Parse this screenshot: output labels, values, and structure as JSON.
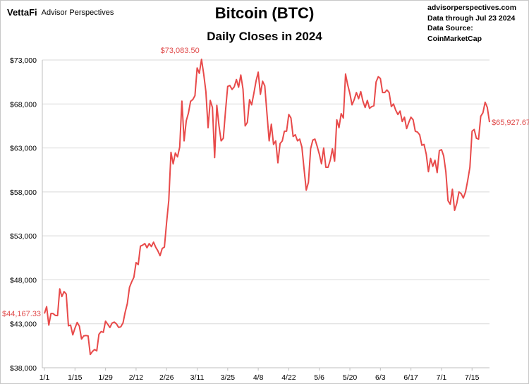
{
  "header": {
    "brand": "VettaFi",
    "brand_sub": "Advisor Perspectives",
    "source_lines": [
      "advisorperspectives.com",
      "Data through Jul 23 2024",
      "Data Source: CoinMarketCap"
    ]
  },
  "colors": {
    "line": "#e84a4a",
    "grid": "#d9d9d9",
    "accent": "#e03c31"
  },
  "chart_data": {
    "type": "line",
    "title": "Bitcoin (BTC)",
    "subtitle": "Daily Closes in 2024",
    "xlabel": "",
    "ylabel": "",
    "ylim": [
      38000,
      73000
    ],
    "yticks": [
      38000,
      43000,
      48000,
      53000,
      58000,
      63000,
      68000,
      73000
    ],
    "ytick_labels": [
      "$38,000",
      "$43,000",
      "$48,000",
      "$53,000",
      "$58,000",
      "$63,000",
      "$68,000",
      "$73,000"
    ],
    "xticks": [
      "1/1",
      "1/15",
      "1/29",
      "2/12",
      "2/26",
      "3/11",
      "3/25",
      "4/8",
      "4/22",
      "5/6",
      "5/20",
      "6/3",
      "6/17",
      "7/1",
      "7/15"
    ],
    "x_start": "2024-01-01",
    "x_end": "2024-07-23",
    "grid": true,
    "series": [
      {
        "name": "",
        "values": [
          44167.33,
          44950,
          42850,
          44180,
          44160,
          43950,
          43930,
          46970,
          46100,
          46660,
          46380,
          42780,
          42850,
          41740,
          42510,
          43150,
          42740,
          41270,
          41620,
          41670,
          41620,
          39510,
          39850,
          40080,
          39930,
          41810,
          42120,
          42030,
          43300,
          42950,
          42580,
          43080,
          43190,
          42990,
          42580,
          42660,
          43100,
          44300,
          45300,
          47150,
          47770,
          48290,
          49960,
          49740,
          51830,
          51940,
          52130,
          51650,
          52120,
          51780,
          52280,
          51700,
          51300,
          50750,
          51570,
          51730,
          54520,
          57050,
          62500,
          61180,
          62430,
          61990,
          63110,
          68330,
          63800,
          66100,
          66950,
          68300,
          68500,
          68950,
          72100,
          71480,
          73083.5,
          71400,
          69400,
          65300,
          68400,
          67600,
          61900,
          67850,
          65500,
          63800,
          64100,
          67200,
          70000,
          70100,
          69650,
          69950,
          70780,
          69900,
          71300,
          69700,
          65500,
          65900,
          68500,
          67900,
          69200,
          70600,
          71620,
          69100,
          70590,
          70050,
          66900,
          63800,
          65700,
          63400,
          63800,
          61300,
          63500,
          63800,
          64900,
          64900,
          66800,
          66400,
          64300,
          64500,
          63800,
          64000,
          63100,
          60600,
          58200,
          59100,
          62900,
          63900,
          64000,
          63200,
          62300,
          61200,
          63000,
          60800,
          60800,
          61600,
          62900,
          61500,
          66200,
          65300,
          66900,
          66400,
          71400,
          70200,
          69200,
          67900,
          68500,
          69300,
          68600,
          69400,
          68300,
          67600,
          68400,
          67500,
          67700,
          67800,
          70500,
          71100,
          70900,
          69300,
          69300,
          69600,
          69300,
          67700,
          68000,
          67300,
          66800,
          67200,
          66000,
          66500,
          65200,
          65900,
          66500,
          66200,
          64900,
          64800,
          64500,
          63300,
          63400,
          62300,
          60300,
          61800,
          60900,
          61600,
          60200,
          62700,
          62800,
          62100,
          60300,
          57000,
          56600,
          58300,
          55900,
          56700,
          58000,
          57800,
          57300,
          58000,
          59300,
          60800,
          64900,
          65100,
          64100,
          64000,
          66600,
          67000,
          68200,
          67600,
          65927.67
        ]
      }
    ],
    "annotations": [
      {
        "text": "$44,167.33",
        "kind": "start"
      },
      {
        "text": "$73,083.50",
        "kind": "peak"
      },
      {
        "text": "$65,927.67",
        "kind": "end"
      }
    ]
  }
}
